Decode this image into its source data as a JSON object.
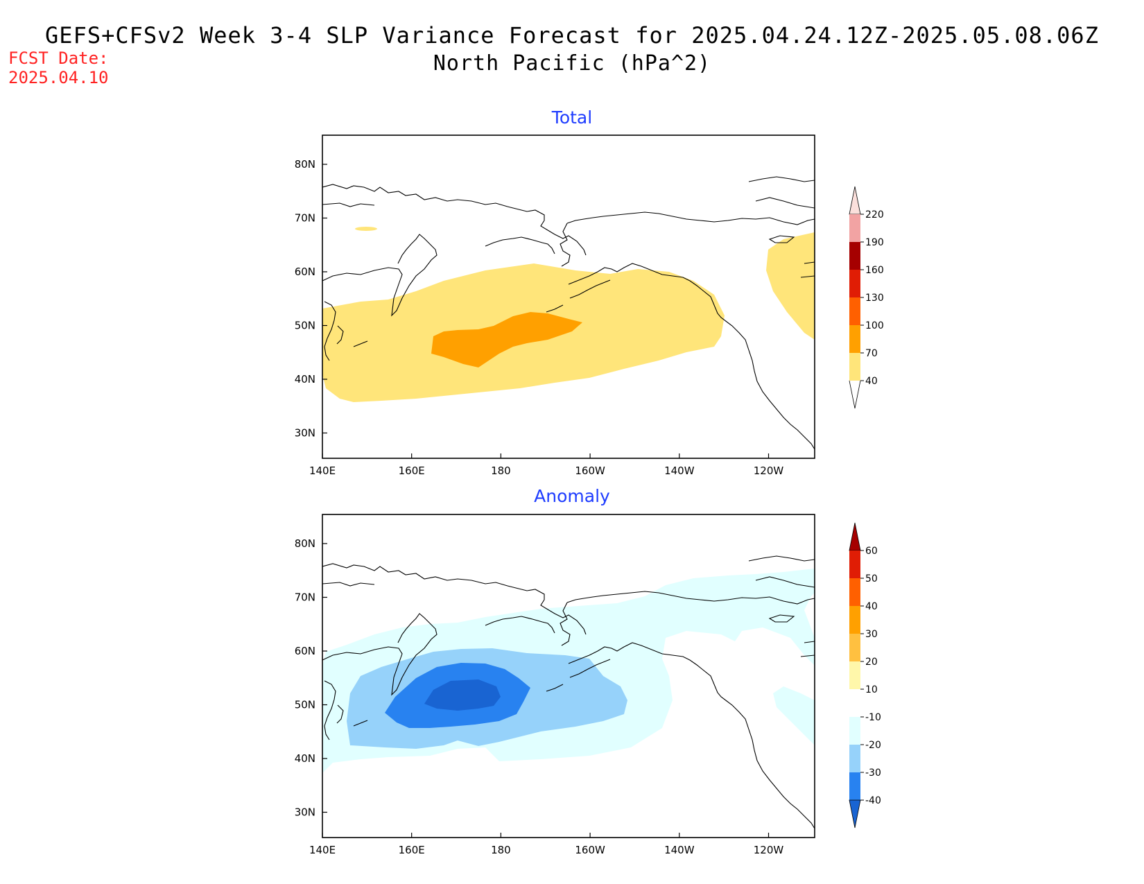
{
  "title": "GEFS+CFSv2 Week 3-4 SLP Variance Forecast for 2025.04.24.12Z-2025.05.08.06Z",
  "subtitle": "North Pacific (hPa^2)",
  "fcst_label": "FCST Date:",
  "fcst_date": "2025.04.10",
  "panels": [
    {
      "title": "Total",
      "lat_labels": [
        "80N",
        "70N",
        "60N",
        "50N",
        "40N",
        "30N"
      ],
      "lon_labels": [
        "140E",
        "160E",
        "180",
        "160W",
        "140W",
        "120W"
      ],
      "colorbar": {
        "levels": [
          "220",
          "190",
          "160",
          "130",
          "100",
          "70",
          "40"
        ],
        "colors": [
          "#fbe0dc",
          "#f2a3a3",
          "#a50000",
          "#e01d05",
          "#ff6000",
          "#ffa000",
          "#ffe57a"
        ]
      }
    },
    {
      "title": "Anomaly",
      "lat_labels": [
        "80N",
        "70N",
        "60N",
        "50N",
        "40N",
        "30N"
      ],
      "lon_labels": [
        "140E",
        "160E",
        "180",
        "160W",
        "140W",
        "120W"
      ],
      "colorbar": {
        "levels": [
          "60",
          "50",
          "40",
          "30",
          "20",
          "10",
          "-10",
          "-20",
          "-30",
          "-40"
        ],
        "colors": [
          "#a50000",
          "#e01d05",
          "#ff6000",
          "#ffa000",
          "#ffc040",
          "#fff7aa",
          "#ffffff",
          "#e1ffff",
          "#96d2fa",
          "#2882f0",
          "#1964d2"
        ]
      }
    }
  ]
}
